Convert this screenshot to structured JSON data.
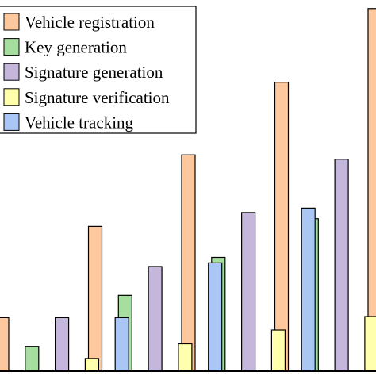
{
  "chart_data": {
    "type": "bar",
    "title": "",
    "xlabel": "",
    "ylabel": "",
    "grid": false,
    "legend_position": "top-left",
    "ylim": [
      0,
      100
    ],
    "categories": [
      "",
      "",
      "",
      "",
      ""
    ],
    "series": [
      {
        "name": "Vehicle registration",
        "color": "#FDC89D",
        "values": [
          14.7,
          39.7,
          59.3,
          79.2,
          99.4
        ]
      },
      {
        "name": "Key generation",
        "color": "#A6DEA0",
        "values": [
          6.8,
          20.8,
          31.2,
          41.8,
          52.3
        ]
      },
      {
        "name": "Signature generation",
        "color": "#C5B6DB",
        "values": [
          14.7,
          28.7,
          43.5,
          58.1,
          72.8
        ]
      },
      {
        "name": "Signature verification",
        "color": "#FFFFAE",
        "values": [
          3.5,
          7.5,
          11.3,
          15.0,
          18.8
        ]
      },
      {
        "name": "Vehicle tracking",
        "color": "#A9C6F5",
        "values": [
          14.7,
          29.7,
          44.7,
          60.0,
          75.0
        ]
      }
    ]
  }
}
